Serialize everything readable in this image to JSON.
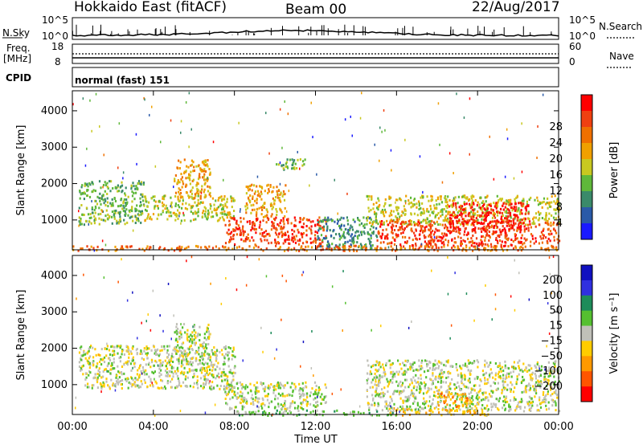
{
  "header": {
    "station": "Hokkaido East (fitACF)",
    "beam": "Beam 00",
    "date": "22/Aug/2017"
  },
  "strips": {
    "nsky_label": "N.Sky",
    "nsky_ticks": [
      "10^5",
      "10^0"
    ],
    "nsearch_label": "N.Search",
    "nsearch_ticks": [
      "10^5",
      "10^0"
    ],
    "freq_label_1": "Freq.",
    "freq_label_2": "[MHz]",
    "freq_ticks": [
      "18",
      "8"
    ],
    "nave_label": "Nave",
    "nave_ticks": [
      "60",
      "0"
    ],
    "cpid_label": "CPID",
    "cpid_text": "normal (fast) 151"
  },
  "chart_data": [
    {
      "type": "heatmap",
      "name": "power",
      "ylabel": "Slant Range [km]",
      "yticks": [
        1000,
        2000,
        3000,
        4000
      ],
      "ylim": [
        180,
        4550
      ],
      "xlabel": "Time UT",
      "xticks": [
        "00:00",
        "04:00",
        "08:00",
        "12:00",
        "16:00",
        "20:00",
        "00:00"
      ],
      "xlim_hours": [
        0,
        24
      ],
      "colorbar": {
        "label": "Power [dB]",
        "ticks": [
          "4",
          "8",
          "12",
          "16",
          "20",
          "24",
          "28"
        ],
        "colors": [
          "#1a1aff",
          "#2a5aa8",
          "#3a8a6a",
          "#5fb83a",
          "#c8c820",
          "#f0a000",
          "#f07000",
          "#f04010",
          "#ff0000"
        ]
      },
      "regions": [
        {
          "t0": 0.3,
          "t1": 3.5,
          "r0": 900,
          "r1": 2100,
          "level": 3
        },
        {
          "t0": 3.5,
          "t1": 8.0,
          "r0": 1000,
          "r1": 1700,
          "level": 4
        },
        {
          "t0": 5.0,
          "t1": 6.8,
          "r0": 1600,
          "r1": 2700,
          "level": 5
        },
        {
          "t0": 7.5,
          "t1": 12.5,
          "r0": 350,
          "r1": 1100,
          "level": 7
        },
        {
          "t0": 8.5,
          "t1": 10.5,
          "r0": 1100,
          "r1": 2000,
          "level": 5
        },
        {
          "t0": 10.0,
          "t1": 11.5,
          "r0": 2400,
          "r1": 2700,
          "level": 3
        },
        {
          "t0": 12.0,
          "t1": 15.0,
          "r0": 250,
          "r1": 1100,
          "level": 2
        },
        {
          "t0": 14.5,
          "t1": 24.0,
          "r0": 900,
          "r1": 1700,
          "level": 4
        },
        {
          "t0": 15.0,
          "t1": 24.0,
          "r0": 300,
          "r1": 1000,
          "level": 7
        },
        {
          "t0": 18.5,
          "t1": 22.5,
          "r0": 700,
          "r1": 1500,
          "level": 8
        },
        {
          "t0": 0.0,
          "t1": 24.0,
          "r0": 180,
          "r1": 320,
          "level": 6
        }
      ]
    },
    {
      "type": "heatmap",
      "name": "velocity",
      "ylabel": "Slant Range [km]",
      "yticks": [
        1000,
        2000,
        3000,
        4000
      ],
      "ylim": [
        180,
        4550
      ],
      "xlabel": "Time UT",
      "xticks": [
        "00:00",
        "04:00",
        "08:00",
        "12:00",
        "16:00",
        "20:00",
        "00:00"
      ],
      "xlim_hours": [
        0,
        24
      ],
      "colorbar": {
        "label": "Velocity [m s⁻¹]",
        "ticks": [
          "200",
          "100",
          "50",
          "15",
          "−15",
          "−50",
          "−100",
          "−200"
        ],
        "colors": [
          "#1010c0",
          "#3030e0",
          "#1e8c5a",
          "#55c030",
          "#c0c0b8",
          "#ffcc00",
          "#ff9900",
          "#ff5500",
          "#ff0000"
        ]
      },
      "regions": [
        {
          "t0": 0.3,
          "t1": 8.0,
          "r0": 900,
          "r1": 2100,
          "level": 4
        },
        {
          "t0": 5.0,
          "t1": 6.8,
          "r0": 1600,
          "r1": 2700,
          "level": 4
        },
        {
          "t0": 7.5,
          "t1": 12.5,
          "r0": 350,
          "r1": 1100,
          "level": 4
        },
        {
          "t0": 14.5,
          "t1": 24.0,
          "r0": 300,
          "r1": 1700,
          "level": 4
        },
        {
          "t0": 15.5,
          "t1": 20.5,
          "r0": 180,
          "r1": 350,
          "level": 5
        },
        {
          "t0": 18.0,
          "t1": 19.5,
          "r0": 400,
          "r1": 800,
          "level": 6
        },
        {
          "t0": 8.0,
          "t1": 16.0,
          "r0": 180,
          "r1": 320,
          "level": 3
        }
      ]
    }
  ]
}
